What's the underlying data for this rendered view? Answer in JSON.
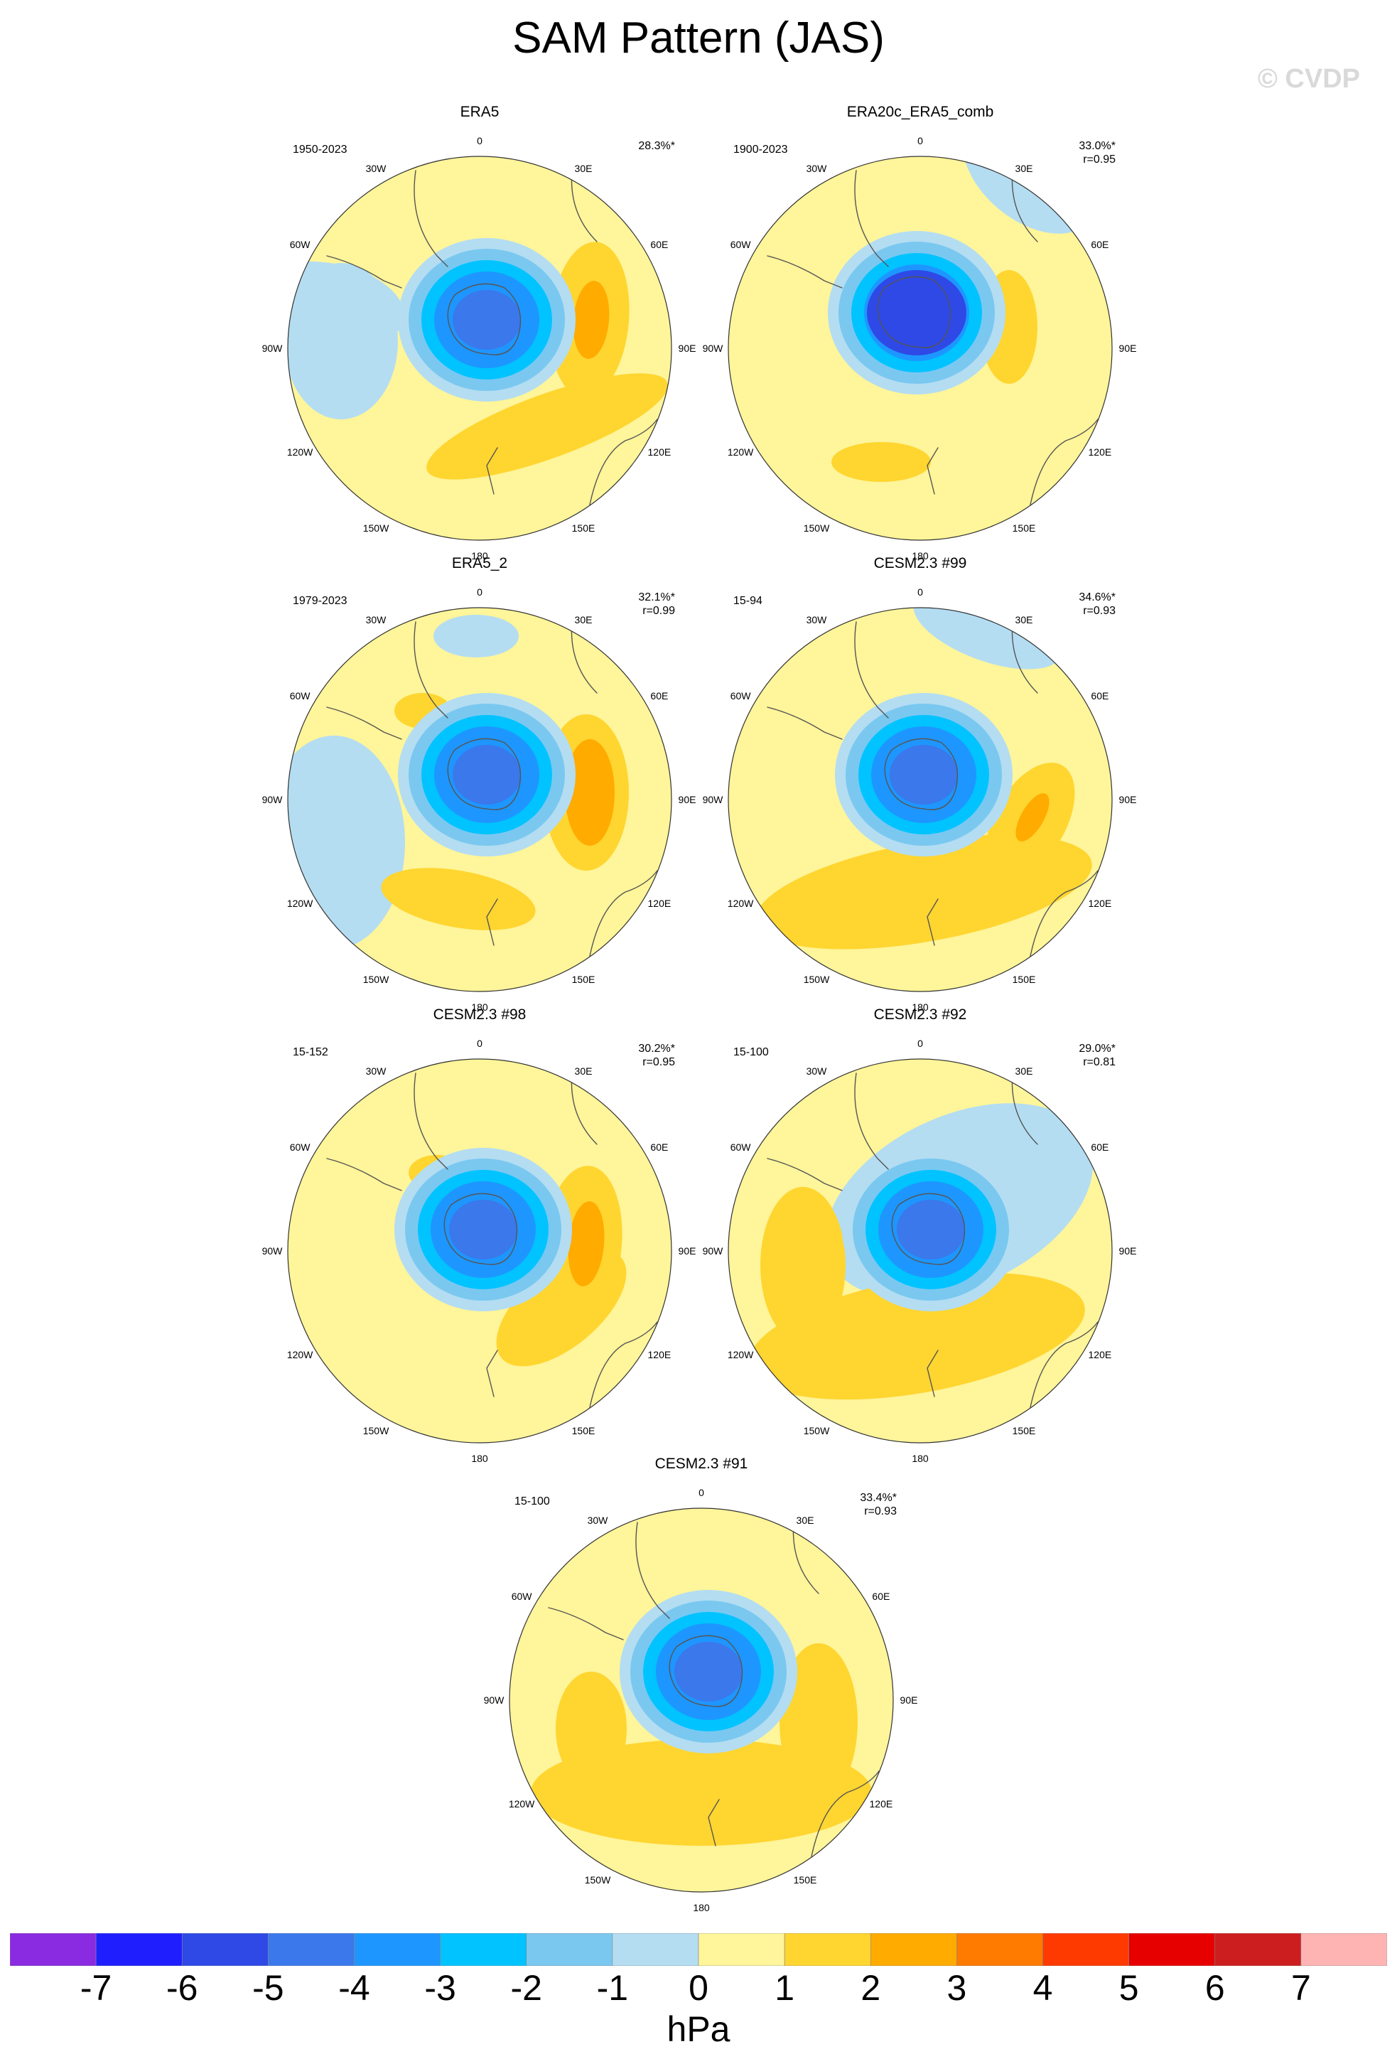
{
  "title": "SAM Pattern (JAS)",
  "watermark": "© CVDP",
  "lon_labels": [
    "0",
    "30E",
    "60E",
    "90E",
    "120E",
    "150E",
    "180",
    "150W",
    "120W",
    "90W",
    "60W",
    "30W"
  ],
  "panels": [
    {
      "title": "ERA5",
      "period": "1950-2023",
      "variance": "28.3%*",
      "r": ""
    },
    {
      "title": "ERA20c_ERA5_comb",
      "period": "1900-2023",
      "variance": "33.0%*",
      "r": "r=0.95"
    },
    {
      "title": "ERA5_2",
      "period": "1979-2023",
      "variance": "32.1%*",
      "r": "r=0.99"
    },
    {
      "title": "CESM2.3 #99",
      "period": "15-94",
      "variance": "34.6%*",
      "r": "r=0.93"
    },
    {
      "title": "CESM2.3 #98",
      "period": "15-152",
      "variance": "30.2%*",
      "r": "r=0.95"
    },
    {
      "title": "CESM2.3 #92",
      "period": "15-100",
      "variance": "29.0%*",
      "r": "r=0.81"
    },
    {
      "title": "CESM2.3 #91",
      "period": "15-100",
      "variance": "33.4%*",
      "r": "r=0.93"
    }
  ],
  "colorbar": {
    "labels": [
      "-7",
      "-6",
      "-5",
      "-4",
      "-3",
      "-2",
      "-1",
      "0",
      "1",
      "2",
      "3",
      "4",
      "5",
      "6",
      "7"
    ],
    "colors": [
      "#8a2be2",
      "#1e1eff",
      "#2e49e6",
      "#3a78eb",
      "#1e96ff",
      "#00c3ff",
      "#7ac8f0",
      "#b4ddf2",
      "#fff59a",
      "#ffd530",
      "#ffab00",
      "#ff7b00",
      "#ff3a00",
      "#e60000",
      "#cc1e1e",
      "#ffb4b4"
    ],
    "units": "hPa"
  },
  "colors": {
    "yellow_light": "#fff59a",
    "yellow": "#ffd530",
    "orange": "#ffab00",
    "blue_light": "#b4ddf2",
    "blue_mid": "#7ac8f0",
    "blue_cyan": "#00c3ff",
    "blue": "#1e96ff",
    "blue_dark": "#3a78eb",
    "blue_deep": "#2e49e6"
  }
}
